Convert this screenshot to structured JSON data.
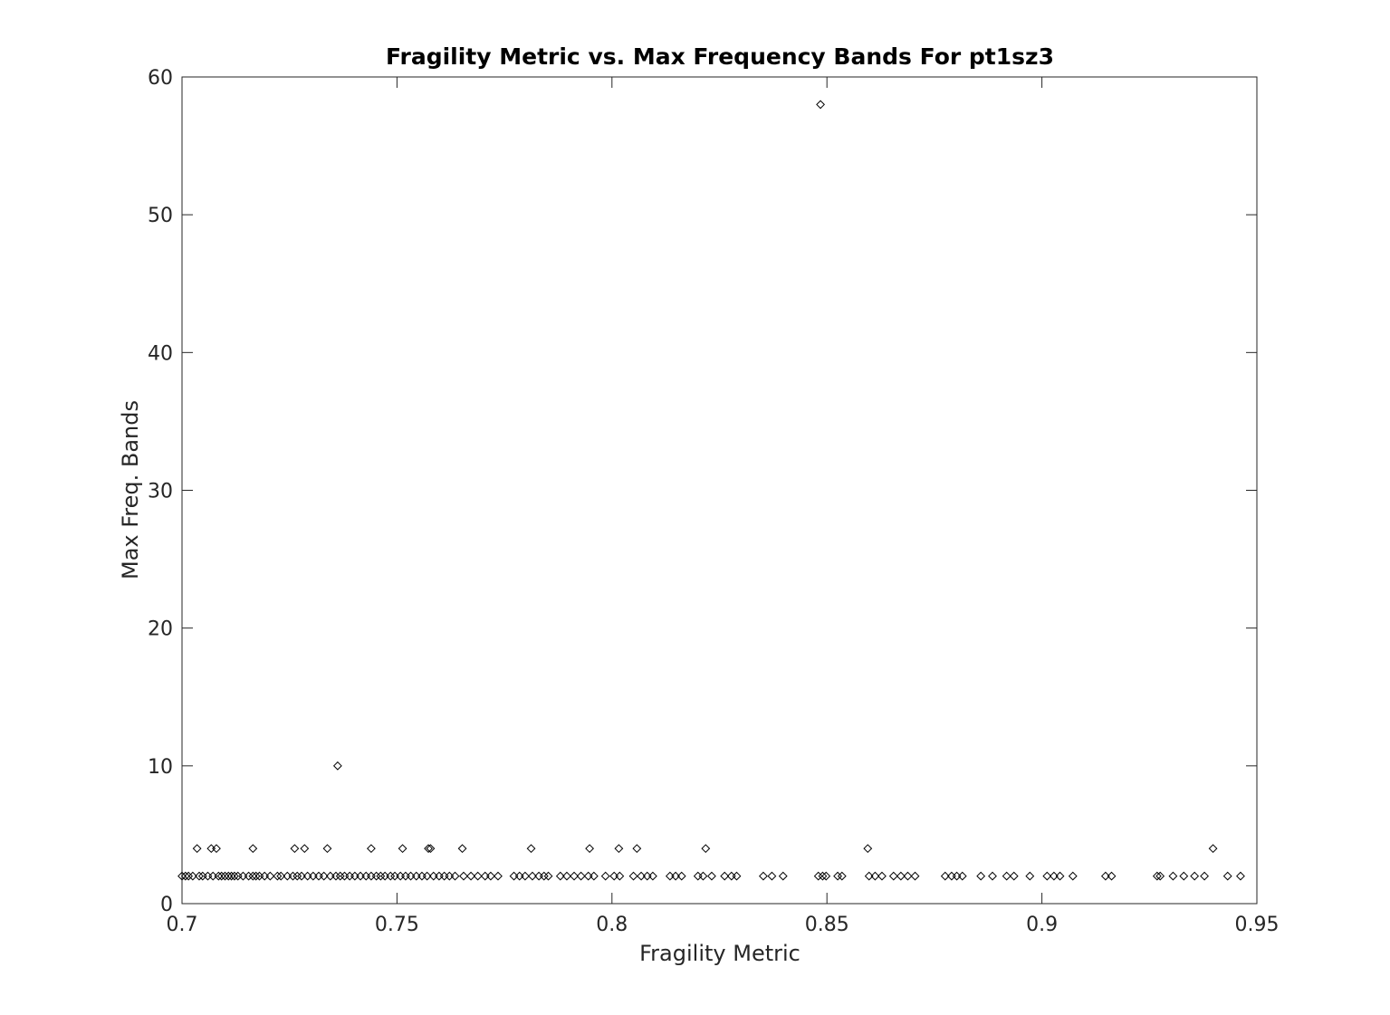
{
  "chart_data": {
    "type": "scatter",
    "title": "Fragility Metric vs. Max Frequency Bands For pt1sz3",
    "xlabel": "Fragility Metric",
    "ylabel": "Max Freq. Bands",
    "xlim": [
      0.7,
      0.95
    ],
    "ylim": [
      0,
      60
    ],
    "xticks": [
      0.7,
      0.75,
      0.8,
      0.85,
      0.9,
      0.95
    ],
    "xtick_labels": [
      "0.7",
      "0.75",
      "0.8",
      "0.85",
      "0.9",
      "0.95"
    ],
    "yticks": [
      0,
      10,
      20,
      30,
      40,
      50,
      60
    ],
    "ytick_labels": [
      "0",
      "10",
      "20",
      "30",
      "40",
      "50",
      "60"
    ],
    "grid": false,
    "marker": "diamond",
    "marker_color": "#000000",
    "points": [
      {
        "x": 0.8485,
        "y": 58
      },
      {
        "x": 0.7362,
        "y": 10
      },
      {
        "x": 0.7035,
        "y": 4
      },
      {
        "x": 0.7068,
        "y": 4
      },
      {
        "x": 0.708,
        "y": 4
      },
      {
        "x": 0.7165,
        "y": 4
      },
      {
        "x": 0.7262,
        "y": 4
      },
      {
        "x": 0.7285,
        "y": 4
      },
      {
        "x": 0.7338,
        "y": 4
      },
      {
        "x": 0.744,
        "y": 4
      },
      {
        "x": 0.7513,
        "y": 4
      },
      {
        "x": 0.7573,
        "y": 4
      },
      {
        "x": 0.7578,
        "y": 4
      },
      {
        "x": 0.7652,
        "y": 4
      },
      {
        "x": 0.7812,
        "y": 4
      },
      {
        "x": 0.7948,
        "y": 4
      },
      {
        "x": 0.8016,
        "y": 4
      },
      {
        "x": 0.8058,
        "y": 4
      },
      {
        "x": 0.8218,
        "y": 4
      },
      {
        "x": 0.8595,
        "y": 4
      },
      {
        "x": 0.9398,
        "y": 4
      },
      {
        "x": 0.7,
        "y": 2
      },
      {
        "x": 0.7008,
        "y": 2
      },
      {
        "x": 0.7015,
        "y": 2
      },
      {
        "x": 0.7025,
        "y": 2
      },
      {
        "x": 0.704,
        "y": 2
      },
      {
        "x": 0.7048,
        "y": 2
      },
      {
        "x": 0.706,
        "y": 2
      },
      {
        "x": 0.7072,
        "y": 2
      },
      {
        "x": 0.7085,
        "y": 2
      },
      {
        "x": 0.7092,
        "y": 2
      },
      {
        "x": 0.71,
        "y": 2
      },
      {
        "x": 0.7108,
        "y": 2
      },
      {
        "x": 0.7115,
        "y": 2
      },
      {
        "x": 0.7122,
        "y": 2
      },
      {
        "x": 0.713,
        "y": 2
      },
      {
        "x": 0.7142,
        "y": 2
      },
      {
        "x": 0.7155,
        "y": 2
      },
      {
        "x": 0.7165,
        "y": 2
      },
      {
        "x": 0.7172,
        "y": 2
      },
      {
        "x": 0.718,
        "y": 2
      },
      {
        "x": 0.7192,
        "y": 2
      },
      {
        "x": 0.7205,
        "y": 2
      },
      {
        "x": 0.7222,
        "y": 2
      },
      {
        "x": 0.723,
        "y": 2
      },
      {
        "x": 0.7245,
        "y": 2
      },
      {
        "x": 0.7258,
        "y": 2
      },
      {
        "x": 0.7268,
        "y": 2
      },
      {
        "x": 0.7278,
        "y": 2
      },
      {
        "x": 0.7292,
        "y": 2
      },
      {
        "x": 0.7305,
        "y": 2
      },
      {
        "x": 0.7318,
        "y": 2
      },
      {
        "x": 0.733,
        "y": 2
      },
      {
        "x": 0.7345,
        "y": 2
      },
      {
        "x": 0.7358,
        "y": 2
      },
      {
        "x": 0.7368,
        "y": 2
      },
      {
        "x": 0.7378,
        "y": 2
      },
      {
        "x": 0.739,
        "y": 2
      },
      {
        "x": 0.7402,
        "y": 2
      },
      {
        "x": 0.7415,
        "y": 2
      },
      {
        "x": 0.7428,
        "y": 2
      },
      {
        "x": 0.744,
        "y": 2
      },
      {
        "x": 0.7452,
        "y": 2
      },
      {
        "x": 0.7462,
        "y": 2
      },
      {
        "x": 0.7472,
        "y": 2
      },
      {
        "x": 0.7485,
        "y": 2
      },
      {
        "x": 0.7495,
        "y": 2
      },
      {
        "x": 0.7508,
        "y": 2
      },
      {
        "x": 0.752,
        "y": 2
      },
      {
        "x": 0.7532,
        "y": 2
      },
      {
        "x": 0.7545,
        "y": 2
      },
      {
        "x": 0.7558,
        "y": 2
      },
      {
        "x": 0.757,
        "y": 2
      },
      {
        "x": 0.7585,
        "y": 2
      },
      {
        "x": 0.7598,
        "y": 2
      },
      {
        "x": 0.761,
        "y": 2
      },
      {
        "x": 0.7622,
        "y": 2
      },
      {
        "x": 0.7635,
        "y": 2
      },
      {
        "x": 0.7655,
        "y": 2
      },
      {
        "x": 0.7672,
        "y": 2
      },
      {
        "x": 0.7688,
        "y": 2
      },
      {
        "x": 0.7705,
        "y": 2
      },
      {
        "x": 0.7718,
        "y": 2
      },
      {
        "x": 0.7735,
        "y": 2
      },
      {
        "x": 0.7772,
        "y": 2
      },
      {
        "x": 0.7785,
        "y": 2
      },
      {
        "x": 0.7798,
        "y": 2
      },
      {
        "x": 0.7815,
        "y": 2
      },
      {
        "x": 0.783,
        "y": 2
      },
      {
        "x": 0.7842,
        "y": 2
      },
      {
        "x": 0.7852,
        "y": 2
      },
      {
        "x": 0.788,
        "y": 2
      },
      {
        "x": 0.7895,
        "y": 2
      },
      {
        "x": 0.7912,
        "y": 2
      },
      {
        "x": 0.7928,
        "y": 2
      },
      {
        "x": 0.7945,
        "y": 2
      },
      {
        "x": 0.7958,
        "y": 2
      },
      {
        "x": 0.7985,
        "y": 2
      },
      {
        "x": 0.8005,
        "y": 2
      },
      {
        "x": 0.8018,
        "y": 2
      },
      {
        "x": 0.805,
        "y": 2
      },
      {
        "x": 0.8068,
        "y": 2
      },
      {
        "x": 0.8082,
        "y": 2
      },
      {
        "x": 0.8095,
        "y": 2
      },
      {
        "x": 0.8135,
        "y": 2
      },
      {
        "x": 0.8148,
        "y": 2
      },
      {
        "x": 0.8162,
        "y": 2
      },
      {
        "x": 0.82,
        "y": 2
      },
      {
        "x": 0.8212,
        "y": 2
      },
      {
        "x": 0.8232,
        "y": 2
      },
      {
        "x": 0.8262,
        "y": 2
      },
      {
        "x": 0.8278,
        "y": 2
      },
      {
        "x": 0.829,
        "y": 2
      },
      {
        "x": 0.8352,
        "y": 2
      },
      {
        "x": 0.8372,
        "y": 2
      },
      {
        "x": 0.8398,
        "y": 2
      },
      {
        "x": 0.848,
        "y": 2
      },
      {
        "x": 0.849,
        "y": 2
      },
      {
        "x": 0.8498,
        "y": 2
      },
      {
        "x": 0.8525,
        "y": 2
      },
      {
        "x": 0.8535,
        "y": 2
      },
      {
        "x": 0.8598,
        "y": 2
      },
      {
        "x": 0.8612,
        "y": 2
      },
      {
        "x": 0.8628,
        "y": 2
      },
      {
        "x": 0.8655,
        "y": 2
      },
      {
        "x": 0.8672,
        "y": 2
      },
      {
        "x": 0.8688,
        "y": 2
      },
      {
        "x": 0.8705,
        "y": 2
      },
      {
        "x": 0.8775,
        "y": 2
      },
      {
        "x": 0.879,
        "y": 2
      },
      {
        "x": 0.8802,
        "y": 2
      },
      {
        "x": 0.8815,
        "y": 2
      },
      {
        "x": 0.8858,
        "y": 2
      },
      {
        "x": 0.8885,
        "y": 2
      },
      {
        "x": 0.8918,
        "y": 2
      },
      {
        "x": 0.8935,
        "y": 2
      },
      {
        "x": 0.8972,
        "y": 2
      },
      {
        "x": 0.9012,
        "y": 2
      },
      {
        "x": 0.9028,
        "y": 2
      },
      {
        "x": 0.9042,
        "y": 2
      },
      {
        "x": 0.9072,
        "y": 2
      },
      {
        "x": 0.9148,
        "y": 2
      },
      {
        "x": 0.9162,
        "y": 2
      },
      {
        "x": 0.9268,
        "y": 2
      },
      {
        "x": 0.9275,
        "y": 2
      },
      {
        "x": 0.9305,
        "y": 2
      },
      {
        "x": 0.933,
        "y": 2
      },
      {
        "x": 0.9355,
        "y": 2
      },
      {
        "x": 0.9378,
        "y": 2
      },
      {
        "x": 0.9432,
        "y": 2
      },
      {
        "x": 0.9462,
        "y": 2
      }
    ]
  }
}
